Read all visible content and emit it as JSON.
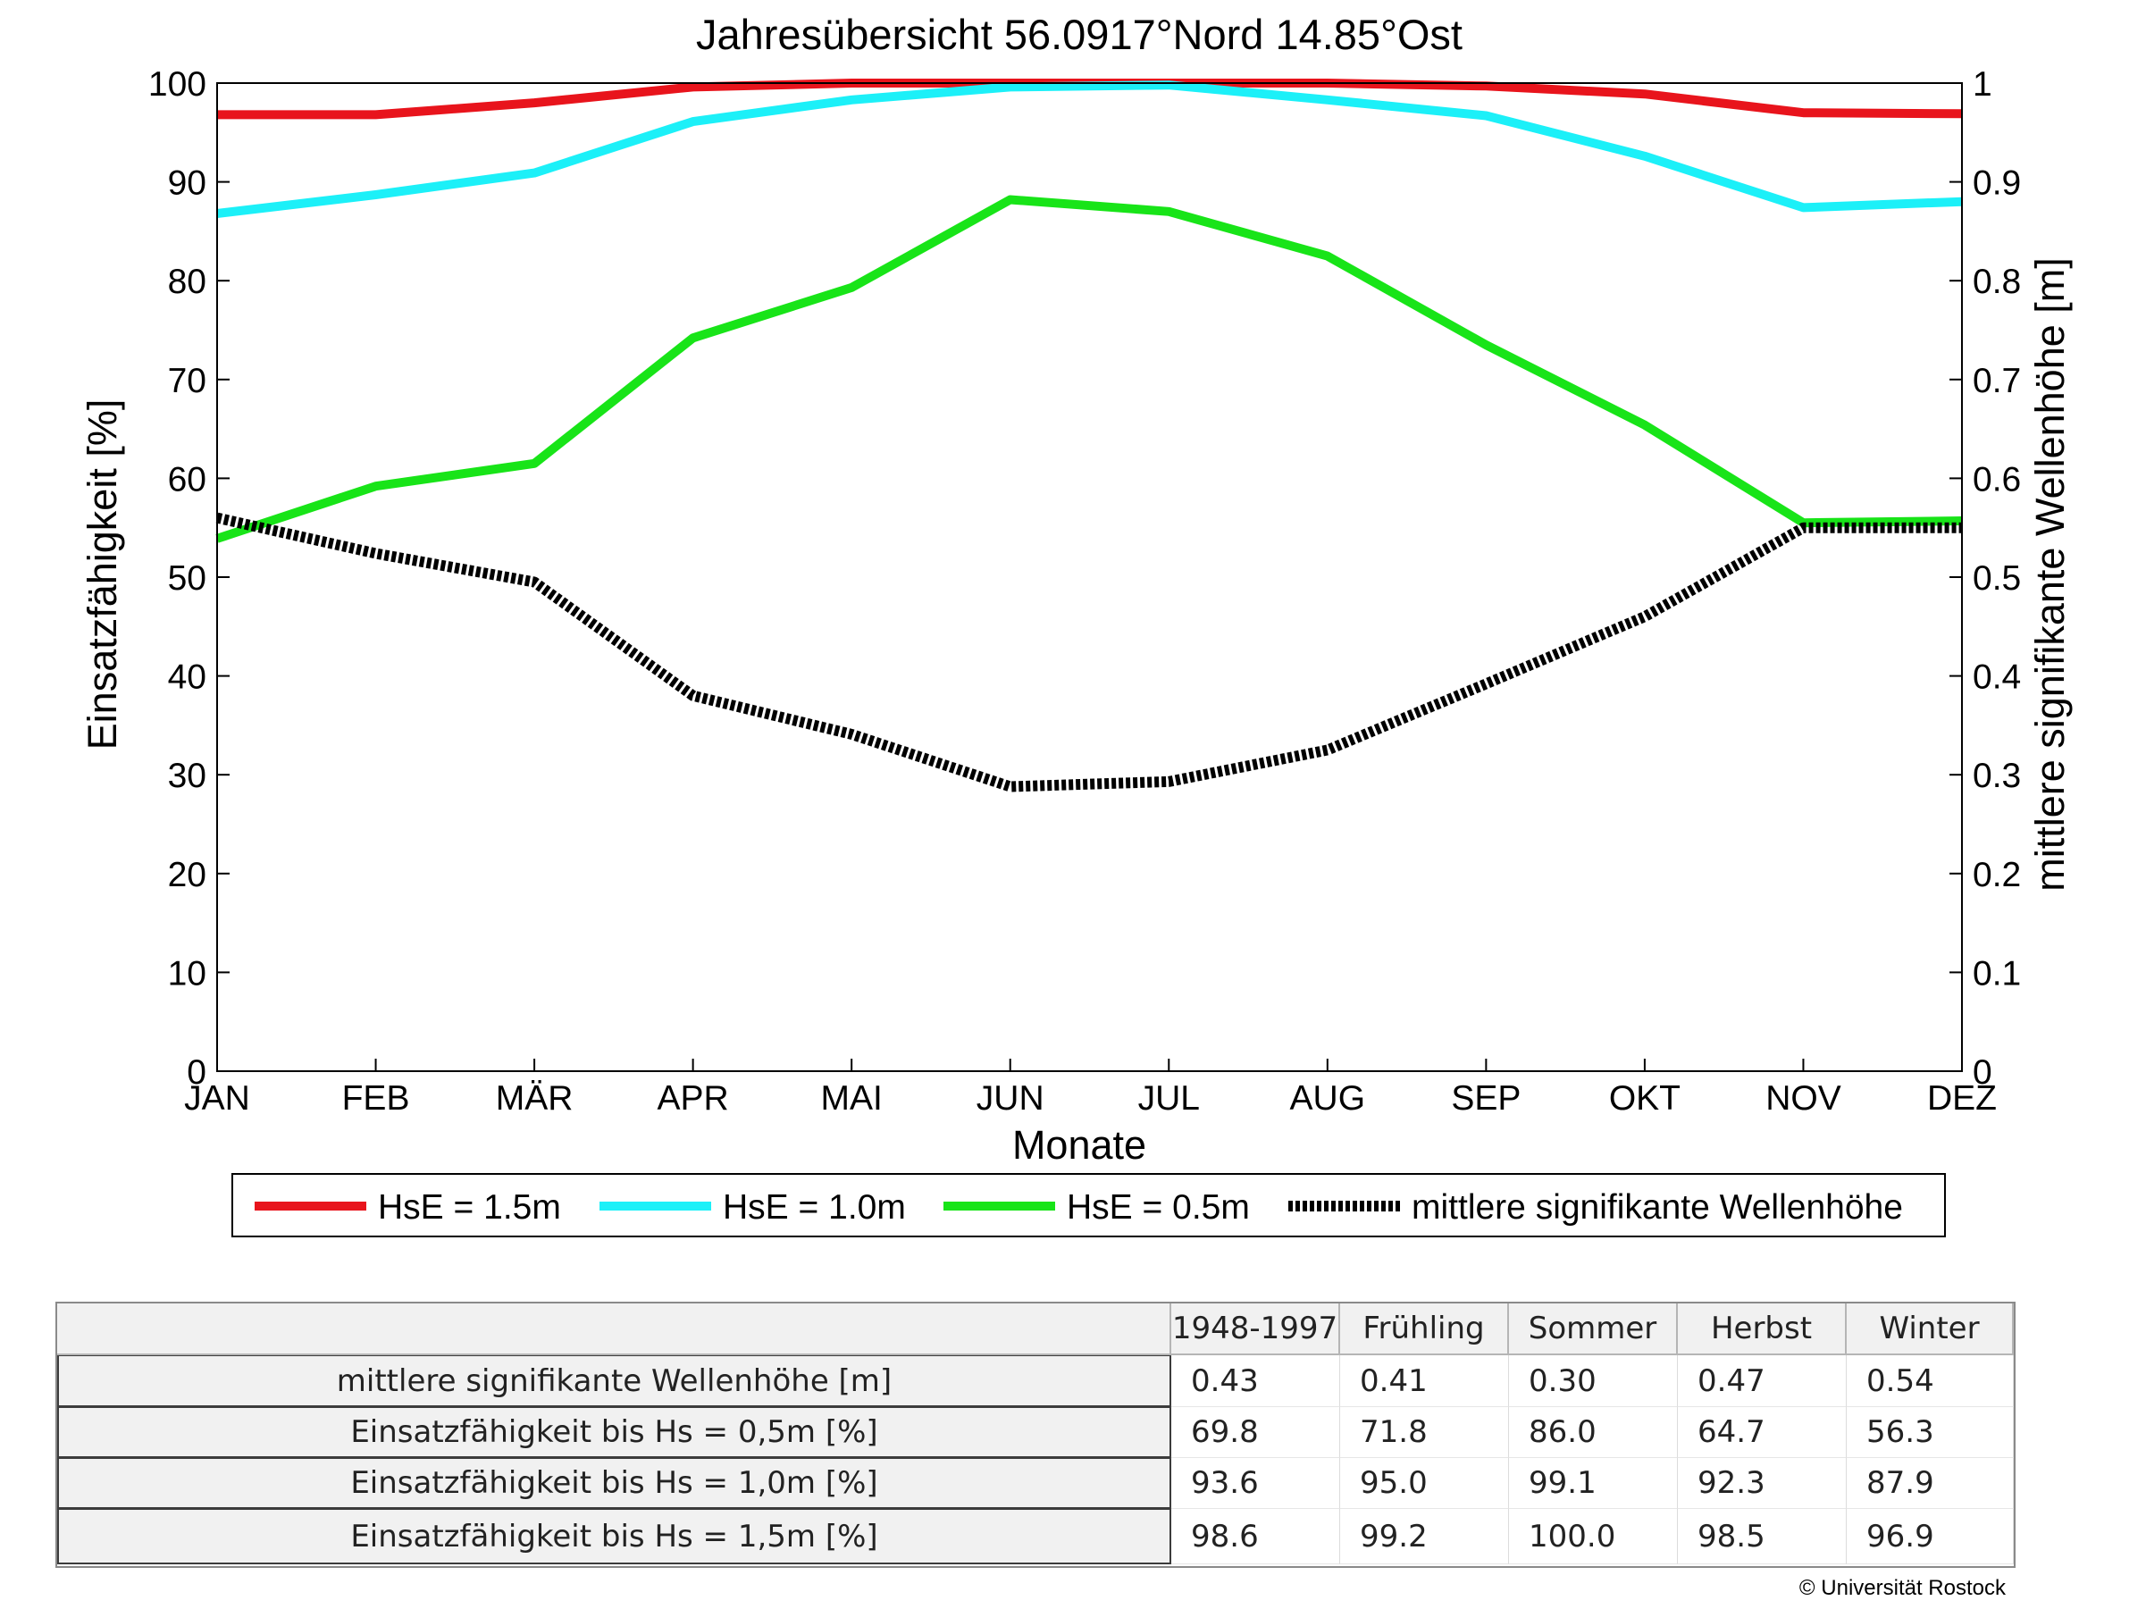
{
  "chart_data": {
    "type": "line",
    "title": "Jahresübersicht  56.0917°Nord  14.85°Ost",
    "xlabel": "Monate",
    "ylabel": "Einsatzfähigkeit [%]",
    "ylabel_right": "mittlere signifikante Wellenhöhe [m]",
    "categories": [
      "JAN",
      "FEB",
      "MÄR",
      "APR",
      "MAI",
      "JUN",
      "JUL",
      "AUG",
      "SEP",
      "OKT",
      "NOV",
      "DEZ"
    ],
    "ylim": [
      0,
      100
    ],
    "yticks": [
      0,
      10,
      20,
      30,
      40,
      50,
      60,
      70,
      80,
      90,
      100
    ],
    "ylim_right": [
      0,
      1
    ],
    "yticks_right": [
      "0",
      "0.1",
      "0.2",
      "0.3",
      "0.4",
      "0.5",
      "0.6",
      "0.7",
      "0.8",
      "0.9",
      "1"
    ],
    "grid": false,
    "legend_position": "bottom",
    "series": [
      {
        "name": "HsE = 1.5m",
        "axis": "left",
        "color": "#e8141c",
        "style": "solid",
        "values": [
          96.8,
          96.8,
          98.0,
          99.6,
          100.0,
          100.0,
          100.0,
          100.0,
          99.7,
          98.9,
          97.0,
          96.9
        ]
      },
      {
        "name": "HsE = 1.0m",
        "axis": "left",
        "color": "#1cf0f8",
        "style": "solid",
        "values": [
          86.8,
          88.7,
          90.9,
          96.1,
          98.3,
          99.6,
          99.8,
          98.3,
          96.7,
          92.6,
          87.4,
          88.0
        ]
      },
      {
        "name": "HsE = 0.5m",
        "axis": "left",
        "color": "#18e418",
        "style": "solid",
        "values": [
          53.9,
          59.2,
          61.5,
          74.2,
          79.3,
          88.2,
          87.0,
          82.5,
          73.5,
          65.4,
          55.5,
          55.7
        ]
      },
      {
        "name": "mittlere signifikante Wellenhöhe",
        "axis": "right",
        "color": "#000000",
        "style": "dotted",
        "values": [
          0.56,
          0.524,
          0.495,
          0.38,
          0.341,
          0.288,
          0.293,
          0.325,
          0.392,
          0.46,
          0.55,
          0.55
        ]
      }
    ]
  },
  "table": {
    "columns": [
      "1948-1997",
      "Frühling",
      "Sommer",
      "Herbst",
      "Winter"
    ],
    "rows": [
      {
        "label": "mittlere signifikante Wellenhöhe [m]",
        "values": [
          "0.43",
          "0.41",
          "0.30",
          "0.47",
          "0.54"
        ]
      },
      {
        "label": "Einsatzfähigkeit bis Hs = 0,5m [%]",
        "values": [
          "69.8",
          "71.8",
          "86.0",
          "64.7",
          "56.3"
        ]
      },
      {
        "label": "Einsatzfähigkeit bis Hs = 1,0m [%]",
        "values": [
          "93.6",
          "95.0",
          "99.1",
          "92.3",
          "87.9"
        ]
      },
      {
        "label": "Einsatzfähigkeit bis Hs = 1,5m [%]",
        "values": [
          "98.6",
          "99.2",
          "100.0",
          "98.5",
          "96.9"
        ]
      }
    ]
  },
  "copyright": "© Universität Rostock"
}
